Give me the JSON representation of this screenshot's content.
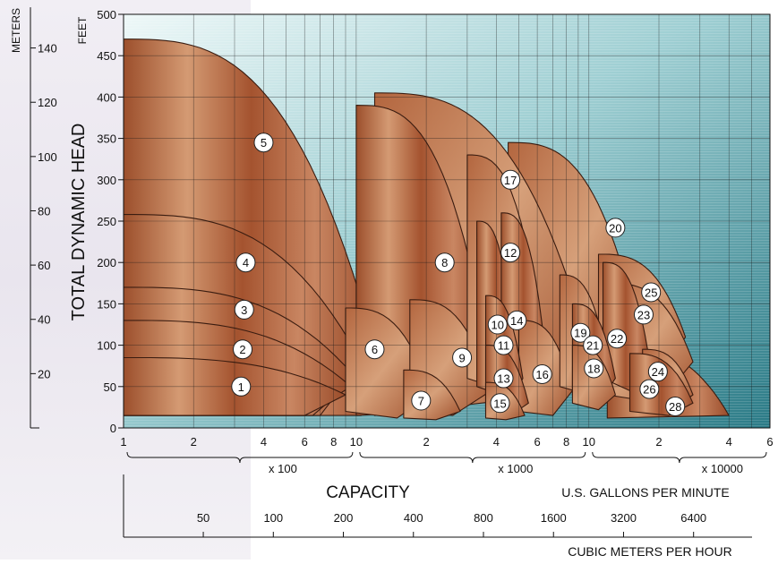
{
  "chart_data": {
    "type": "area",
    "title": "",
    "ylabel": "TOTAL DYNAMIC HEAD",
    "ylabel_unit_feet": "FEET",
    "ylabel_unit_meters": "METERS",
    "xlabel": "CAPACITY",
    "x_unit_primary": "U.S. GALLONS PER MINUTE",
    "x_unit_secondary": "CUBIC METERS PER HOUR",
    "x_scale": "log",
    "xlim_gpm": [
      100,
      60000
    ],
    "ylim_feet": [
      0,
      500
    ],
    "grid": true,
    "y_ticks_feet": [
      0,
      50,
      100,
      150,
      200,
      250,
      300,
      350,
      400,
      450,
      500
    ],
    "y_ticks_meters": [
      20,
      40,
      60,
      80,
      100,
      120,
      140
    ],
    "x_tick_labels": [
      "1",
      "2",
      "4",
      "6",
      "8",
      "10",
      "2",
      "4",
      "6",
      "8",
      "10",
      "2",
      "4",
      "6"
    ],
    "x_multipliers": [
      "x 100",
      "x 1000",
      "x 10000"
    ],
    "m3h_ticks": [
      50,
      100,
      200,
      400,
      800,
      1600,
      3200,
      6400
    ],
    "series_regions": [
      {
        "name": "1",
        "gpm_range": [
          100,
          1000
        ],
        "max_head_ft": 85
      },
      {
        "name": "2",
        "gpm_range": [
          100,
          1000
        ],
        "max_head_ft": 105
      },
      {
        "name": "3",
        "gpm_range": [
          100,
          1000
        ],
        "max_head_ft": 130
      },
      {
        "name": "4",
        "gpm_range": [
          100,
          1000
        ],
        "max_head_ft": 258
      },
      {
        "name": "5",
        "gpm_range": [
          100,
          1300
        ],
        "max_head_ft": 470
      },
      {
        "name": "6",
        "gpm_range": [
          1000,
          2000
        ],
        "max_head_ft": 140
      },
      {
        "name": "7",
        "gpm_range": [
          1700,
          2800
        ],
        "max_head_ft": 70
      },
      {
        "name": "8",
        "gpm_range": [
          1200,
          3500
        ],
        "max_head_ft": 400
      },
      {
        "name": "9",
        "gpm_range": [
          2000,
          3800
        ],
        "max_head_ft": 150
      },
      {
        "name": "10",
        "gpm_range": [
          3500,
          4800
        ],
        "max_head_ft": 250
      },
      {
        "name": "11",
        "gpm_range": [
          3800,
          5200
        ],
        "max_head_ft": 160
      },
      {
        "name": "12",
        "gpm_range": [
          3000,
          6500
        ],
        "max_head_ft": 330
      },
      {
        "name": "13",
        "gpm_range": [
          3800,
          5500
        ],
        "max_head_ft": 100
      },
      {
        "name": "14",
        "gpm_range": [
          4500,
          6500
        ],
        "max_head_ft": 260
      },
      {
        "name": "15",
        "gpm_range": [
          3800,
          5300
        ],
        "max_head_ft": 55
      },
      {
        "name": "16",
        "gpm_range": [
          5500,
          8500
        ],
        "max_head_ft": 130
      },
      {
        "name": "17",
        "gpm_range": [
          2000,
          9500
        ],
        "max_head_ft": 400
      },
      {
        "name": "18",
        "gpm_range": [
          9000,
          13000
        ],
        "max_head_ft": 100
      },
      {
        "name": "19",
        "gpm_range": [
          8000,
          12000
        ],
        "max_head_ft": 180
      },
      {
        "name": "20",
        "gpm_range": [
          4500,
          16000
        ],
        "max_head_ft": 340
      },
      {
        "name": "21",
        "gpm_range": [
          9000,
          13000
        ],
        "max_head_ft": 150
      },
      {
        "name": "22",
        "gpm_range": [
          12000,
          18000
        ],
        "max_head_ft": 200
      },
      {
        "name": "23",
        "gpm_range": [
          14000,
          24000
        ],
        "max_head_ft": 175
      },
      {
        "name": "24",
        "gpm_range": [
          18000,
          28000
        ],
        "max_head_ft": 95
      },
      {
        "name": "25",
        "gpm_range": [
          12000,
          25000
        ],
        "max_head_ft": 205
      },
      {
        "name": "26",
        "gpm_range": [
          16000,
          28000
        ],
        "max_head_ft": 90
      },
      {
        "name": "28",
        "gpm_range": [
          18000,
          40000
        ],
        "max_head_ft": 100
      }
    ],
    "colors": {
      "region_fill": "#b2603a",
      "region_edge": "#3a1c10",
      "background_light": "#e2f2f3",
      "background_dark": "#2f7f8a",
      "grid": "#1a1a1a"
    }
  }
}
